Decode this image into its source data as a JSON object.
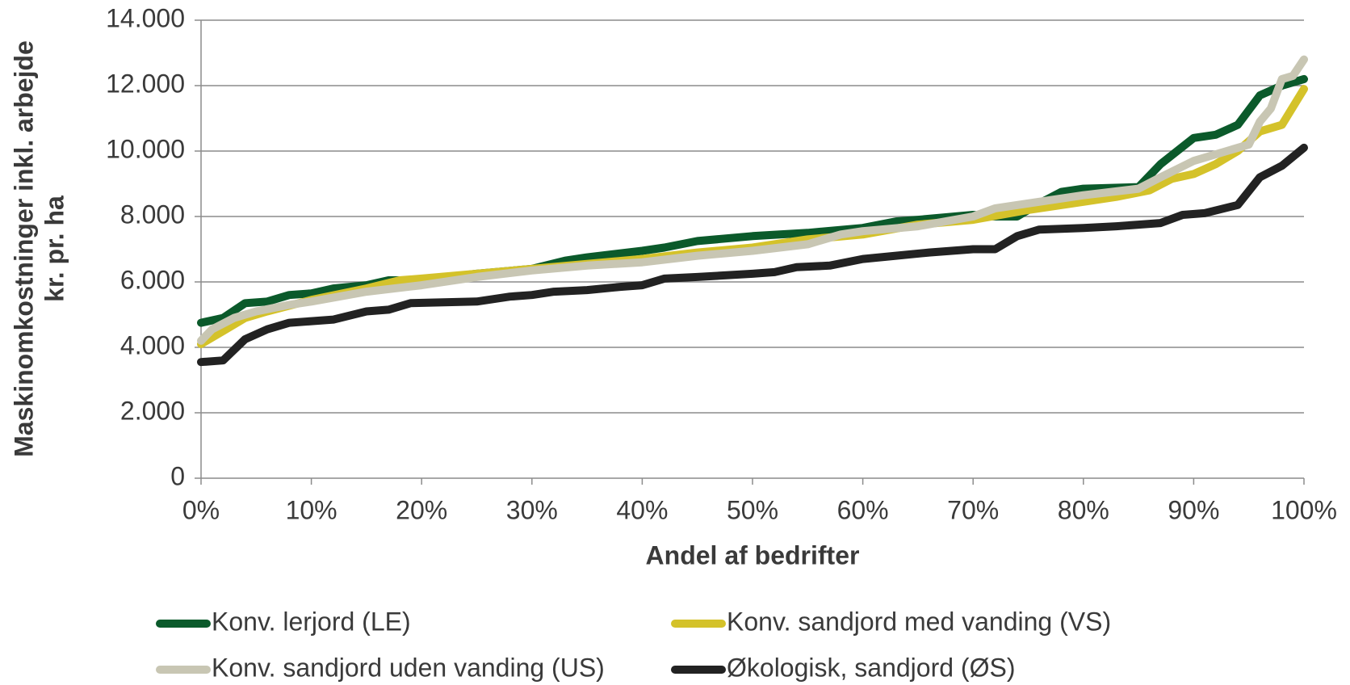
{
  "chart_data": {
    "type": "line",
    "xlabel": "Andel af bedrifter",
    "ylabel": [
      "Maskinomkostninger inkl. arbejde",
      "kr. pr. ha"
    ],
    "xlim": [
      0,
      100
    ],
    "xticks": [
      {
        "value": 0,
        "label": "0%"
      },
      {
        "value": 10,
        "label": "10%"
      },
      {
        "value": 20,
        "label": "20%"
      },
      {
        "value": 30,
        "label": "30%"
      },
      {
        "value": 40,
        "label": "40%"
      },
      {
        "value": 50,
        "label": "50%"
      },
      {
        "value": 60,
        "label": "60%"
      },
      {
        "value": 70,
        "label": "70%"
      },
      {
        "value": 80,
        "label": "80%"
      },
      {
        "value": 90,
        "label": "90%"
      },
      {
        "value": 100,
        "label": "100%"
      }
    ],
    "ylim": [
      0,
      14000
    ],
    "yticks": [
      0,
      {
        "value": 2000,
        "label": "2.000"
      },
      {
        "value": 4000,
        "label": "4.000"
      },
      {
        "value": 6000,
        "label": "6.000"
      },
      {
        "value": 8000,
        "label": "8.000"
      },
      {
        "value": 10000,
        "label": "10.000"
      },
      {
        "value": 12000,
        "label": "12.000"
      },
      {
        "value": 14000,
        "label": "14.000"
      }
    ],
    "grid": true,
    "legend": "bottom",
    "series": [
      {
        "name": "Konv. lerjord (LE)",
        "color": "#0b5a2b",
        "x": [
          0,
          2,
          4,
          6,
          8,
          10,
          12,
          15,
          17,
          20,
          25,
          30,
          33,
          35,
          40,
          42,
          45,
          50,
          55,
          60,
          63,
          65,
          70,
          72,
          74,
          76,
          78,
          80,
          85,
          87,
          90,
          92,
          94,
          96,
          98,
          100
        ],
        "values": [
          4750,
          4900,
          5350,
          5400,
          5600,
          5650,
          5800,
          5900,
          6050,
          6050,
          6250,
          6400,
          6650,
          6750,
          6950,
          7050,
          7250,
          7400,
          7500,
          7650,
          7850,
          7900,
          8050,
          8000,
          8000,
          8400,
          8750,
          8850,
          8900,
          9600,
          10400,
          10500,
          10800,
          11700,
          12000,
          12200
        ]
      },
      {
        "name": "Konv. sandjord med vanding (VS)",
        "color": "#d4c22a",
        "x": [
          0,
          2,
          4,
          6,
          10,
          15,
          18,
          20,
          25,
          30,
          35,
          40,
          45,
          50,
          55,
          60,
          65,
          70,
          75,
          80,
          83,
          86,
          88,
          90,
          92,
          94,
          96,
          98,
          100
        ],
        "values": [
          4100,
          4500,
          4900,
          5100,
          5450,
          5800,
          6050,
          6100,
          6250,
          6400,
          6550,
          6700,
          6900,
          7050,
          7300,
          7450,
          7750,
          7900,
          8200,
          8450,
          8600,
          8800,
          9150,
          9300,
          9600,
          10000,
          10600,
          10800,
          11900
        ]
      },
      {
        "name": "Konv. sandjord uden vanding (US)",
        "color": "#c8c6b3",
        "x": [
          0,
          1,
          3,
          5,
          8,
          10,
          15,
          20,
          25,
          30,
          35,
          40,
          45,
          50,
          55,
          58,
          60,
          65,
          70,
          72,
          75,
          80,
          85,
          87,
          90,
          93,
          95,
          96,
          97,
          98,
          99,
          100
        ],
        "values": [
          4200,
          4550,
          4900,
          5100,
          5300,
          5400,
          5700,
          5900,
          6150,
          6350,
          6500,
          6600,
          6800,
          6950,
          7150,
          7450,
          7550,
          7700,
          8000,
          8250,
          8400,
          8650,
          8850,
          9200,
          9700,
          10000,
          10200,
          10900,
          11300,
          12200,
          12300,
          12800
        ]
      },
      {
        "name": "Økologisk, sandjord (ØS)",
        "color": "#222222",
        "x": [
          0,
          2,
          4,
          6,
          8,
          10,
          12,
          15,
          17,
          19,
          25,
          28,
          30,
          32,
          35,
          38,
          40,
          42,
          45,
          50,
          52,
          54,
          57,
          60,
          63,
          66,
          70,
          72,
          74,
          76,
          80,
          83,
          85,
          87,
          89,
          91,
          94,
          96,
          98,
          100
        ],
        "values": [
          3550,
          3600,
          4250,
          4550,
          4750,
          4800,
          4850,
          5100,
          5150,
          5350,
          5400,
          5550,
          5600,
          5700,
          5750,
          5850,
          5900,
          6100,
          6150,
          6250,
          6300,
          6450,
          6500,
          6700,
          6800,
          6900,
          7000,
          7000,
          7400,
          7600,
          7650,
          7700,
          7750,
          7800,
          8050,
          8100,
          8350,
          9200,
          9550,
          10100
        ]
      }
    ]
  }
}
